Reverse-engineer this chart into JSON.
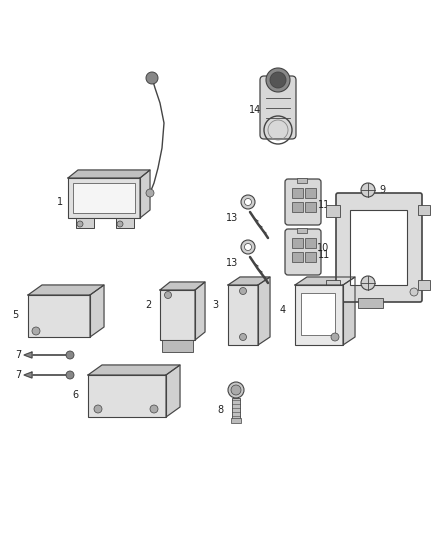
{
  "bg_color": "#ffffff",
  "fig_width": 4.38,
  "fig_height": 5.33,
  "dpi": 100,
  "line_color": "#444444",
  "face_color": "#e8e8e8",
  "shadow_color": "#bbbbbb",
  "label_fontsize": 7.0,
  "label_color": "#222222"
}
